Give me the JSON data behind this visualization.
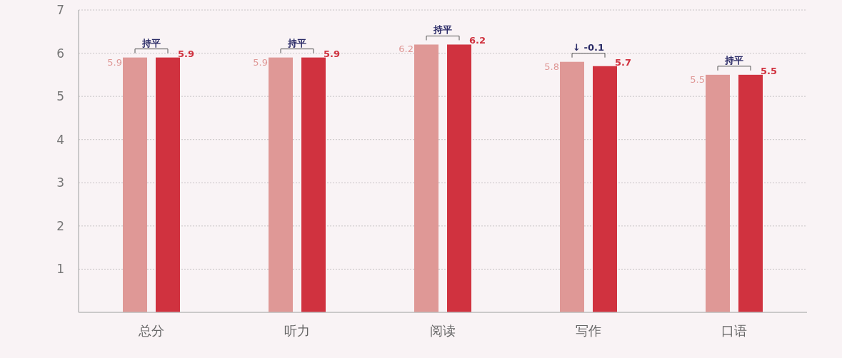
{
  "chart_data": {
    "type": "bar",
    "categories": [
      "总分",
      "听力",
      "阅读",
      "写作",
      "口语"
    ],
    "series": [
      {
        "color": "#df9896",
        "values": [
          5.9,
          5.9,
          6.2,
          5.8,
          5.5
        ]
      },
      {
        "color": "#d0323f",
        "values": [
          5.9,
          5.9,
          6.2,
          5.7,
          5.5
        ]
      }
    ],
    "ylim": [
      0,
      7
    ],
    "yticks": [
      1,
      2,
      3,
      4,
      5,
      6,
      7
    ],
    "grid": "y",
    "data_labels": true,
    "annotations": [
      "持平",
      "持平",
      "持平",
      "↓ -0.1",
      "持平"
    ]
  }
}
